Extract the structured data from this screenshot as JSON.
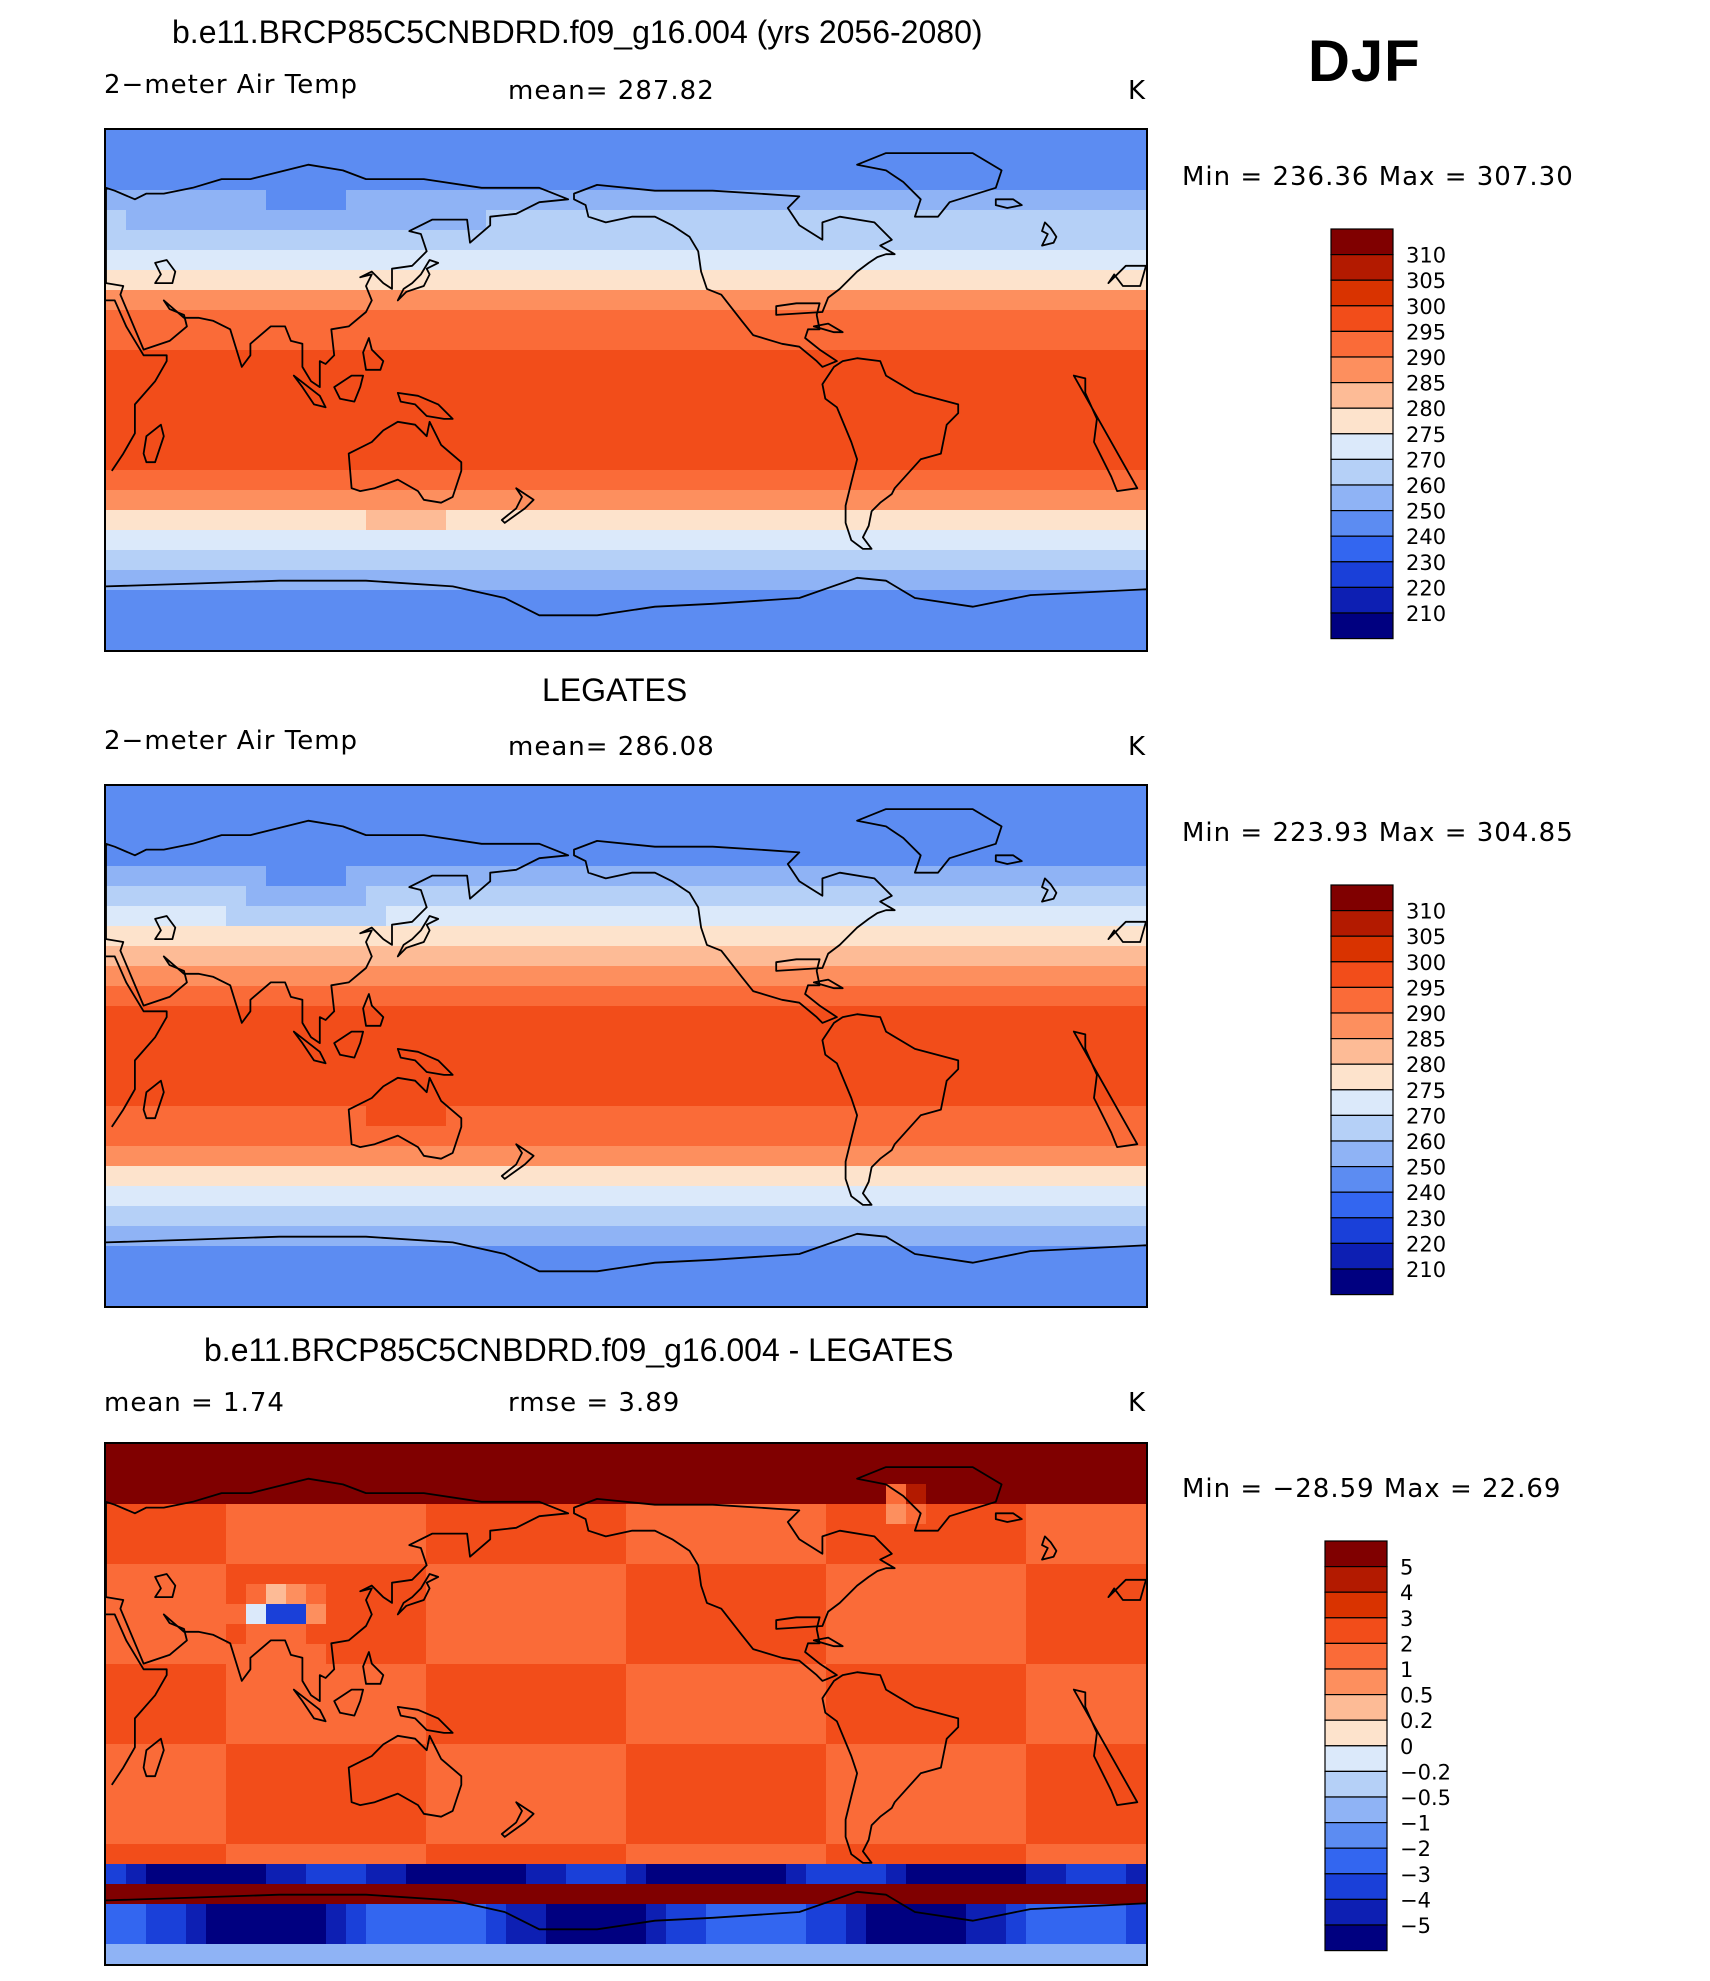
{
  "season": "DJF",
  "panels": [
    {
      "title": "b.e11.BRCP85C5CNBDRD.f09_g16.004 (yrs 2056-2080)",
      "left_label": "2−meter Air Temp",
      "mid_label": "mean=  287.82",
      "unit": "K",
      "minmax": "Min  =  236.36  Max  =  307.30",
      "colorbar_labels": [
        "310",
        "305",
        "300",
        "295",
        "290",
        "285",
        "280",
        "275",
        "270",
        "260",
        "250",
        "240",
        "230",
        "220",
        "210"
      ]
    },
    {
      "title": "LEGATES",
      "left_label": "2−meter Air Temp",
      "mid_label": "mean=  286.08",
      "unit": "K",
      "minmax": "Min  =  223.93  Max  =  304.85",
      "colorbar_labels": [
        "310",
        "305",
        "300",
        "295",
        "290",
        "285",
        "280",
        "275",
        "270",
        "260",
        "250",
        "240",
        "230",
        "220",
        "210"
      ]
    },
    {
      "title": "b.e11.BRCP85C5CNBDRD.f09_g16.004 - LEGATES",
      "left_label": "mean  =     1.74",
      "mid_label": "rmse  =     3.89",
      "unit": "K",
      "minmax": "Min  =  −28.59  Max  =    22.69",
      "colorbar_labels": [
        "5",
        "4",
        "3",
        "2",
        "1",
        "0.5",
        "0.2",
        "0",
        "−0.2",
        "−0.5",
        "−1",
        "−2",
        "−3",
        "−4",
        "−5"
      ]
    }
  ],
  "colors": {
    "colorbar": [
      "#800000",
      "#b31a00",
      "#d93300",
      "#f24d1a",
      "#fa6b38",
      "#fd8f5e",
      "#fdbb96",
      "#fde3cc",
      "#dbe9fa",
      "#b5d0f7",
      "#8fb3f5",
      "#5c8cf2",
      "#3366f0",
      "#1a40d9",
      "#0d1fb3",
      "#000080"
    ],
    "land_outline": "#000000"
  },
  "chart_data": [
    {
      "type": "heatmap",
      "title": "b.e11.BRCP85C5CNBDRD.f09_g16.004 (yrs 2056-2080)",
      "variable": "2-meter Air Temp",
      "units": "K",
      "mean": 287.82,
      "min": 236.36,
      "max": 307.3,
      "levels": [
        210,
        220,
        230,
        240,
        250,
        260,
        270,
        275,
        280,
        285,
        290,
        295,
        300,
        305,
        310
      ]
    },
    {
      "type": "heatmap",
      "title": "LEGATES",
      "variable": "2-meter Air Temp",
      "units": "K",
      "mean": 286.08,
      "min": 223.93,
      "max": 304.85,
      "levels": [
        210,
        220,
        230,
        240,
        250,
        260,
        270,
        275,
        280,
        285,
        290,
        295,
        300,
        305,
        310
      ]
    },
    {
      "type": "heatmap",
      "title": "b.e11.BRCP85C5CNBDRD.f09_g16.004 - LEGATES",
      "units": "K",
      "mean": 1.74,
      "rmse": 3.89,
      "min": -28.59,
      "max": 22.69,
      "levels": [
        -5,
        -4,
        -3,
        -2,
        -1,
        -0.5,
        -0.2,
        0,
        0.2,
        0.5,
        1,
        2,
        3,
        4,
        5
      ]
    }
  ]
}
